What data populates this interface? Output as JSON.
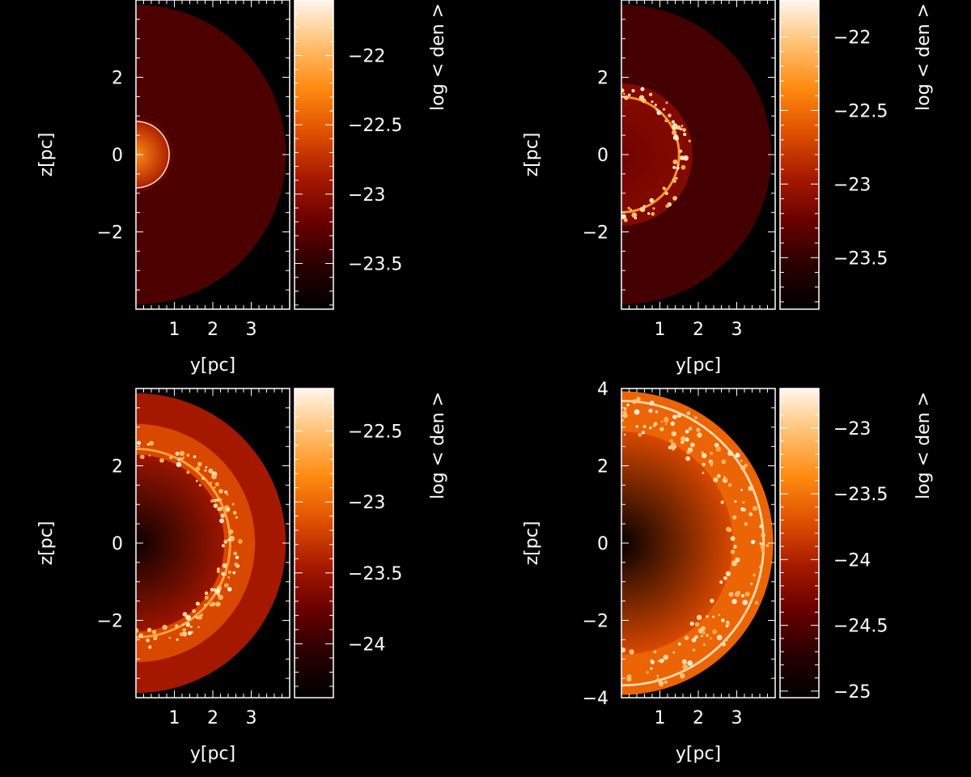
{
  "colors": {
    "background": "#000000",
    "axis": "#ffffff",
    "colormap": [
      "#000000",
      "#2a0000",
      "#6a0000",
      "#a81a00",
      "#e05000",
      "#ff8a10",
      "#ffc070",
      "#fff6ec"
    ]
  },
  "chart_data": [
    {
      "type": "heatmap",
      "panel": "top-left",
      "xlabel": "y[pc]",
      "ylabel": "z[pc]",
      "colorbar_label": "log < den >",
      "xticks": [
        "1",
        "2",
        "3"
      ],
      "yticks": [
        "2",
        "0",
        "−2"
      ],
      "colorbar_ticks": [
        "−22",
        "−22.5",
        "−23",
        "−23.5"
      ],
      "colorbar_range": [
        -23.83,
        -21.6
      ],
      "xlim": [
        0,
        4.0
      ],
      "ylim": [
        -4.0,
        4.0
      ],
      "field": {
        "ambient_radius_pc": 3.9,
        "ambient_level": 0.22,
        "shell_outer_pc": 0.97,
        "shell_level": 0.27,
        "bubble_radius_pc": 0.85,
        "bubble_center_level": 0.72,
        "bubble_edge_level": 0.45,
        "rim_radius_pc": 0.85,
        "rim_level": 0.98,
        "clumps": 0
      }
    },
    {
      "type": "heatmap",
      "panel": "top-right",
      "xlabel": "y[pc]",
      "ylabel": "z[pc]",
      "colorbar_label": "log < den >",
      "xticks": [
        "1",
        "2",
        "3"
      ],
      "yticks": [
        "2",
        "0",
        "−2"
      ],
      "colorbar_ticks": [
        "−22",
        "−22.5",
        "−23",
        "−23.5"
      ],
      "colorbar_range": [
        -23.85,
        -21.75
      ],
      "xlim": [
        0,
        4.0
      ],
      "ylim": [
        -4.0,
        4.0
      ],
      "field": {
        "ambient_radius_pc": 3.9,
        "ambient_level": 0.2,
        "shell_outer_pc": 1.85,
        "shell_level": 0.34,
        "bubble_radius_pc": 1.45,
        "bubble_center_level": 0.3,
        "bubble_edge_level": 0.34,
        "rim_radius_pc": 1.5,
        "rim_level": 0.75,
        "clumps": 60
      }
    },
    {
      "type": "heatmap",
      "panel": "bottom-left",
      "xlabel": "y[pc]",
      "ylabel": "z[pc]",
      "colorbar_label": "log < den >",
      "xticks": [
        "1",
        "2",
        "3"
      ],
      "yticks": [
        "2",
        "0",
        "−2"
      ],
      "colorbar_ticks": [
        "−22.5",
        "−23",
        "−23.5",
        "−24"
      ],
      "colorbar_range": [
        -24.38,
        -22.2
      ],
      "xlim": [
        0,
        4.0
      ],
      "ylim": [
        -4.0,
        4.0
      ],
      "field": {
        "ambient_radius_pc": 3.9,
        "ambient_level": 0.42,
        "shell_outer_pc": 3.1,
        "shell_level": 0.55,
        "bubble_radius_pc": 2.3,
        "bubble_center_level": 0.04,
        "bubble_edge_level": 0.4,
        "rim_radius_pc": 2.45,
        "rim_level": 0.78,
        "clumps": 120
      }
    },
    {
      "type": "heatmap",
      "panel": "bottom-right",
      "xlabel": "y[pc]",
      "ylabel": "z[pc]",
      "colorbar_label": "log < den >",
      "xticks": [
        "1",
        "2",
        "3"
      ],
      "yticks": [
        "4",
        "2",
        "0",
        "−2",
        "−4"
      ],
      "colorbar_ticks": [
        "−23",
        "−23.5",
        "−24",
        "−24.5",
        "−25"
      ],
      "colorbar_range": [
        -25.05,
        -22.7
      ],
      "xlim": [
        0,
        4.0
      ],
      "ylim": [
        -4.0,
        4.0
      ],
      "field": {
        "ambient_radius_pc": 3.9,
        "ambient_level": 0.0,
        "shell_outer_pc": 3.95,
        "shell_level": 0.62,
        "bubble_radius_pc": 2.9,
        "bubble_center_level": 0.02,
        "bubble_edge_level": 0.55,
        "rim_radius_pc": 3.7,
        "rim_level": 0.92,
        "clumps": 160
      }
    }
  ]
}
